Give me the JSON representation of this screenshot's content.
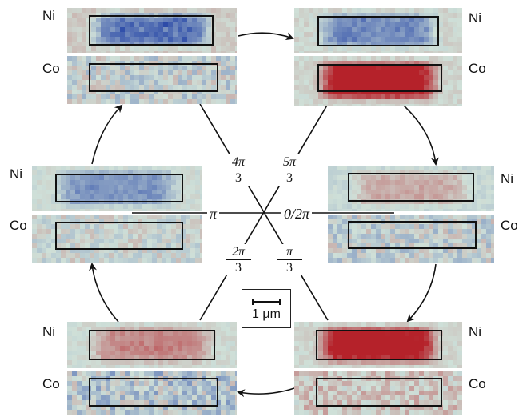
{
  "diagram": {
    "panels": [
      {
        "id": "top-left",
        "ni": "Ni",
        "co": "Co",
        "ni_tone": "blue-strong",
        "co_tone": "mixed-blue"
      },
      {
        "id": "top-right",
        "ni": "Ni",
        "co": "Co",
        "ni_tone": "blue-medium",
        "co_tone": "red-strong"
      },
      {
        "id": "mid-right",
        "ni": "Ni",
        "co": "Co",
        "ni_tone": "red-light",
        "co_tone": "mixed-blue"
      },
      {
        "id": "bottom-right",
        "ni": "Ni",
        "co": "Co",
        "ni_tone": "red-strong",
        "co_tone": "mixed-red"
      },
      {
        "id": "bottom-left",
        "ni": "Ni",
        "co": "Co",
        "ni_tone": "red-medium",
        "co_tone": "mixed-blue-strong"
      },
      {
        "id": "mid-left",
        "ni": "Ni",
        "co": "Co",
        "ni_tone": "blue-light",
        "co_tone": "mixed-light"
      }
    ],
    "phase_labels": {
      "zero": "0/2π",
      "pi": "π",
      "pi_over_3": {
        "num": "π",
        "den": "3"
      },
      "two_pi_over_3": {
        "num": "2π",
        "den": "3"
      },
      "four_pi_over_3": {
        "num": "4π",
        "den": "3"
      },
      "five_pi_over_3": {
        "num": "5π",
        "den": "3"
      }
    },
    "scale_bar": "1 μm",
    "colors": {
      "blue": "#2b4aa8",
      "red": "#b5222a",
      "neutral": "#cfe0d8",
      "frame": "#111111"
    }
  }
}
